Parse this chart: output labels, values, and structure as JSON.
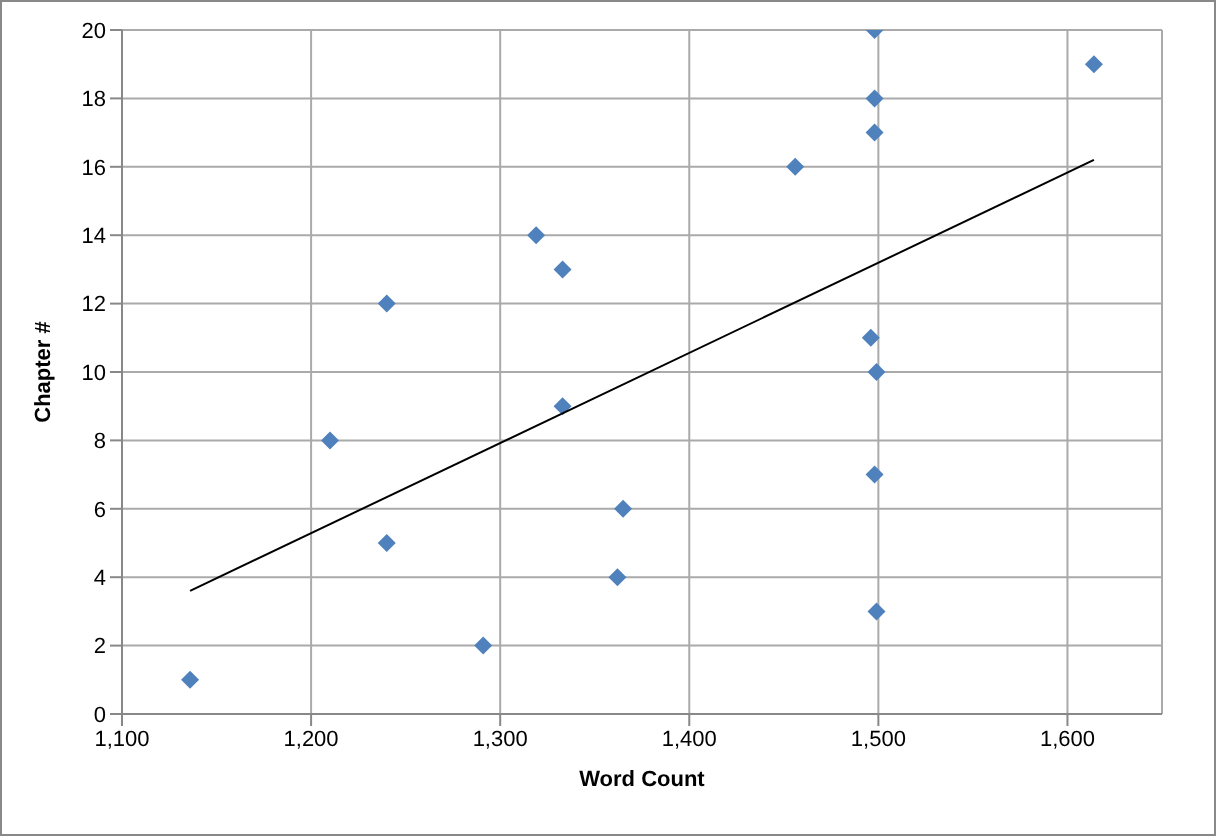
{
  "chart_data": {
    "type": "scatter",
    "xlabel": "Word Count",
    "ylabel": "Chapter #",
    "xlim": [
      1100,
      1650
    ],
    "xticks": [
      {
        "value": 1100,
        "label": "1,100"
      },
      {
        "value": 1200,
        "label": "1,200"
      },
      {
        "value": 1300,
        "label": "1,300"
      },
      {
        "value": 1400,
        "label": "1,400"
      },
      {
        "value": 1500,
        "label": "1,500"
      },
      {
        "value": 1600,
        "label": "1,600"
      }
    ],
    "ylim": [
      0,
      20
    ],
    "yticks": [
      0,
      2,
      4,
      6,
      8,
      10,
      12,
      14,
      16,
      18,
      20
    ],
    "grid": true,
    "marker": "diamond",
    "series": [
      {
        "color": "#4f81bd",
        "x": [
          1136,
          1210,
          1240,
          1240,
          1291,
          1319,
          1333,
          1333,
          1365,
          1362,
          1456,
          1498,
          1498,
          1498,
          1496,
          1499,
          1498,
          1499,
          1614
        ],
        "values": [
          1,
          8,
          12,
          5,
          2,
          14,
          13,
          9,
          6,
          4,
          16,
          20,
          18,
          17,
          11,
          10,
          7,
          3,
          19
        ]
      },
      {
        "type": "line",
        "marker": "none",
        "color": "#000000",
        "x": [
          1136,
          1614
        ],
        "values": [
          3.6,
          16.2
        ]
      }
    ]
  }
}
